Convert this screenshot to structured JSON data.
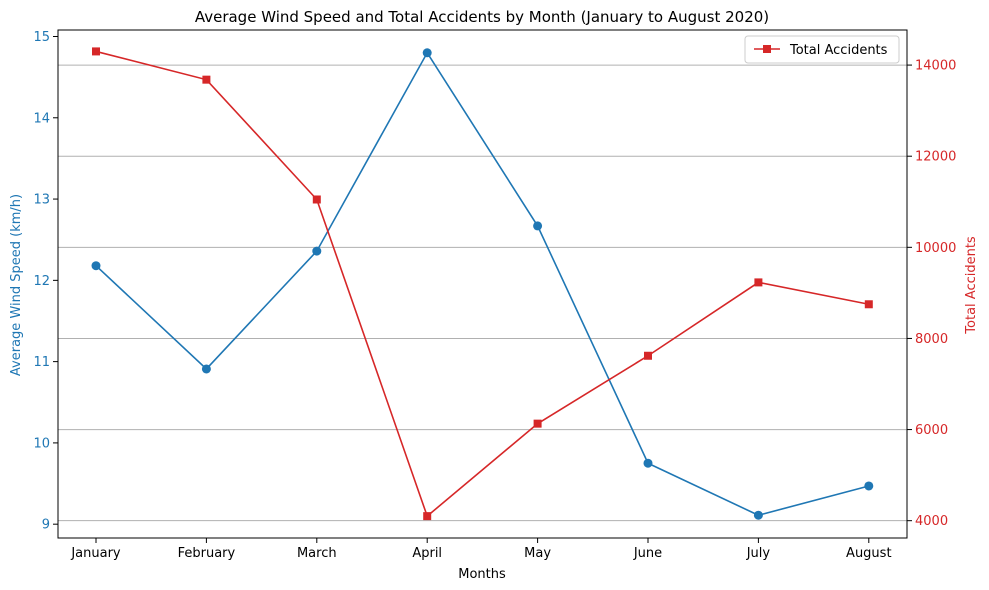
{
  "chart_data": {
    "type": "line",
    "title": "Average Wind Speed and Total Accidents by Month (January to August 2020)",
    "xlabel": "Months",
    "categories": [
      "January",
      "February",
      "March",
      "April",
      "May",
      "June",
      "July",
      "August"
    ],
    "y_left": {
      "label": "Average Wind Speed (km/h)",
      "ticks": [
        "9",
        "10",
        "11",
        "12",
        "13",
        "14",
        "15"
      ],
      "range": [
        8.83,
        15.08
      ],
      "color": "#1f77b4"
    },
    "y_right": {
      "label": "Total Accidents",
      "ticks": [
        "4000",
        "6000",
        "8000",
        "10000",
        "12000",
        "14000"
      ],
      "range": [
        3620,
        14770
      ],
      "color": "#d62728"
    },
    "grid": "horizontal lines at right-axis ticks",
    "legend_position": "top-right",
    "series": [
      {
        "axis": "left",
        "marker": "circle",
        "color": "#1f77b4",
        "values": [
          12.18,
          10.91,
          12.36,
          14.8,
          12.67,
          9.75,
          9.11,
          9.47
        ]
      },
      {
        "name": "Total Accidents",
        "axis": "right",
        "marker": "square",
        "color": "#d62728",
        "values": [
          14300,
          13680,
          11050,
          4100,
          6130,
          7620,
          9230,
          8750
        ]
      }
    ]
  }
}
